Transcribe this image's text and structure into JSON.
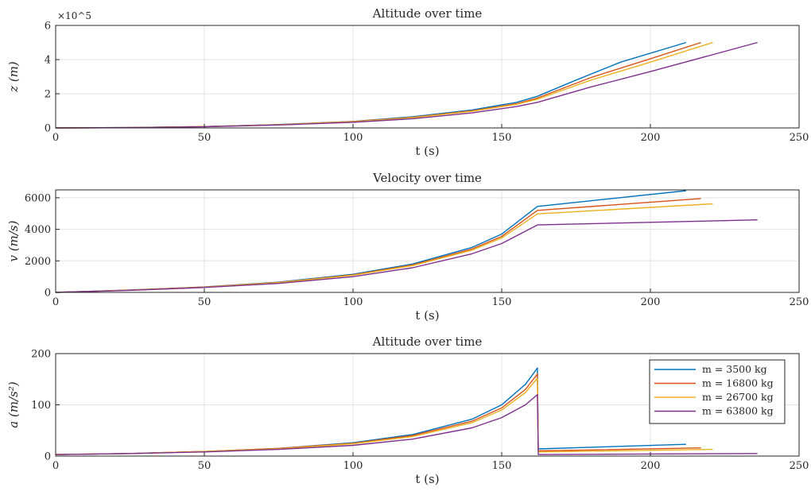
{
  "colors": {
    "m3500": "#0072BD",
    "m16800": "#D95319",
    "m26700": "#EDB120",
    "m63800": "#7E2F8E"
  },
  "chart_data": [
    {
      "type": "line",
      "title": "Altitude over time",
      "xlabel": "t (s)",
      "ylabel": "z (m)",
      "y_exponent_label": "×10^5",
      "xlim": [
        0,
        250
      ],
      "ylim": [
        0,
        6
      ],
      "xticks": [
        0,
        50,
        100,
        150,
        200,
        250
      ],
      "yticks": [
        0,
        2,
        4,
        6
      ],
      "grid": true,
      "series": [
        {
          "color_key": "m3500",
          "x": [
            0,
            25,
            50,
            75,
            100,
            120,
            140,
            155,
            162,
            175,
            190,
            212
          ],
          "y": [
            0,
            0.02,
            0.08,
            0.2,
            0.38,
            0.65,
            1.05,
            1.5,
            1.85,
            2.8,
            3.85,
            5.0
          ]
        },
        {
          "color_key": "m16800",
          "x": [
            0,
            25,
            50,
            75,
            100,
            120,
            140,
            155,
            162,
            180,
            200,
            217
          ],
          "y": [
            0,
            0.02,
            0.08,
            0.19,
            0.37,
            0.62,
            1.0,
            1.42,
            1.75,
            2.95,
            4.05,
            5.0
          ]
        },
        {
          "color_key": "m26700",
          "x": [
            0,
            25,
            50,
            75,
            100,
            120,
            140,
            155,
            162,
            180,
            200,
            221
          ],
          "y": [
            0,
            0.02,
            0.08,
            0.19,
            0.36,
            0.6,
            0.97,
            1.38,
            1.68,
            2.8,
            3.85,
            5.0
          ]
        },
        {
          "color_key": "m63800",
          "x": [
            0,
            25,
            50,
            75,
            100,
            120,
            140,
            155,
            162,
            180,
            200,
            236
          ],
          "y": [
            0,
            0.02,
            0.07,
            0.17,
            0.33,
            0.54,
            0.88,
            1.25,
            1.5,
            2.4,
            3.3,
            5.0
          ]
        }
      ]
    },
    {
      "type": "line",
      "title": "Velocity over time",
      "xlabel": "t (s)",
      "ylabel": "v (m/s)",
      "xlim": [
        0,
        250
      ],
      "ylim": [
        0,
        6500
      ],
      "xticks": [
        0,
        50,
        100,
        150,
        200,
        250
      ],
      "yticks": [
        0,
        2000,
        4000,
        6000
      ],
      "grid": true,
      "series": [
        {
          "color_key": "m3500",
          "x": [
            0,
            25,
            50,
            75,
            100,
            120,
            140,
            150,
            162,
            212
          ],
          "y": [
            0,
            150,
            350,
            650,
            1150,
            1800,
            2850,
            3700,
            5450,
            6450
          ]
        },
        {
          "color_key": "m16800",
          "x": [
            0,
            25,
            50,
            75,
            100,
            120,
            140,
            150,
            162,
            217
          ],
          "y": [
            0,
            145,
            340,
            630,
            1110,
            1740,
            2750,
            3550,
            5200,
            5950
          ]
        },
        {
          "color_key": "m26700",
          "x": [
            0,
            25,
            50,
            75,
            100,
            120,
            140,
            150,
            162,
            221
          ],
          "y": [
            0,
            140,
            335,
            620,
            1090,
            1700,
            2680,
            3450,
            4980,
            5620
          ]
        },
        {
          "color_key": "m63800",
          "x": [
            0,
            25,
            50,
            75,
            100,
            120,
            140,
            150,
            162,
            236
          ],
          "y": [
            0,
            130,
            310,
            570,
            1000,
            1560,
            2450,
            3100,
            4280,
            4600
          ]
        }
      ]
    },
    {
      "type": "line",
      "title": "Altitude over time",
      "xlabel": "t (s)",
      "ylabel": "a (m/s²)",
      "xlim": [
        0,
        250
      ],
      "ylim": [
        0,
        200
      ],
      "xticks": [
        0,
        50,
        100,
        150,
        200,
        250
      ],
      "yticks": [
        0,
        100,
        200
      ],
      "grid": true,
      "legend": "top-right",
      "series": [
        {
          "name": "m = 3500 kg",
          "color_key": "m3500",
          "x": [
            0,
            25,
            50,
            75,
            100,
            120,
            140,
            150,
            158,
            162,
            162.3,
            212
          ],
          "y": [
            3,
            5,
            9,
            15,
            26,
            42,
            72,
            100,
            140,
            172,
            14,
            23
          ]
        },
        {
          "name": "m = 16800 kg",
          "color_key": "m16800",
          "x": [
            0,
            25,
            50,
            75,
            100,
            120,
            140,
            150,
            158,
            162,
            162.3,
            217
          ],
          "y": [
            3,
            5,
            9,
            15,
            25,
            40,
            68,
            94,
            130,
            160,
            10,
            16
          ]
        },
        {
          "name": "m = 26700 kg",
          "color_key": "m26700",
          "x": [
            0,
            25,
            50,
            75,
            100,
            120,
            140,
            150,
            158,
            162,
            162.3,
            221
          ],
          "y": [
            3,
            5,
            9,
            14,
            24,
            38,
            65,
            90,
            124,
            152,
            8,
            13
          ]
        },
        {
          "name": "m = 63800 kg",
          "color_key": "m63800",
          "x": [
            0,
            25,
            50,
            75,
            100,
            120,
            140,
            150,
            158,
            162,
            162.3,
            236
          ],
          "y": [
            3,
            5,
            8,
            13,
            21,
            33,
            55,
            75,
            100,
            120,
            3,
            5
          ]
        }
      ]
    }
  ]
}
